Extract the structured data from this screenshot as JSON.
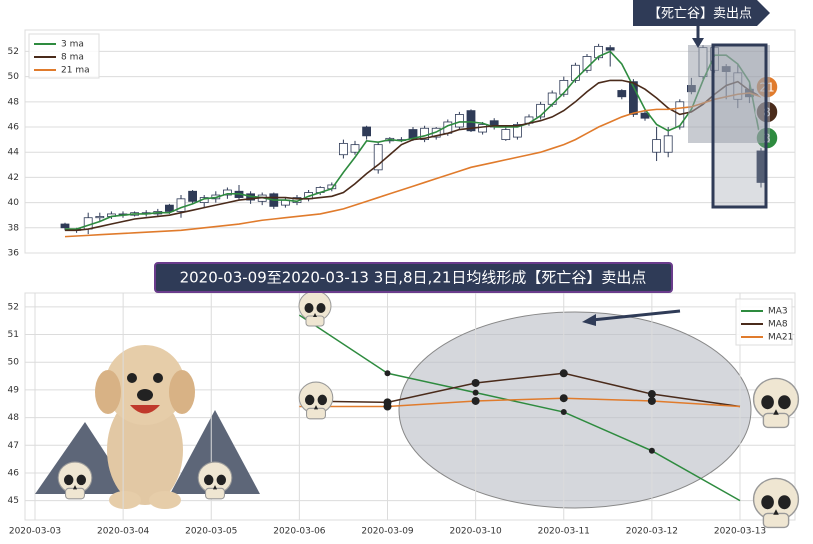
{
  "chart_data": [
    {
      "type": "candlestick",
      "categories": [
        null,
        null,
        null,
        null,
        null,
        null,
        null,
        null,
        null,
        null,
        null,
        null,
        null,
        null,
        null,
        null,
        null,
        null,
        null,
        null,
        null,
        null,
        null,
        null,
        null,
        null,
        null,
        null,
        null,
        null,
        null,
        null,
        null,
        null,
        null,
        null,
        null,
        null,
        null,
        null,
        null,
        null,
        null,
        null,
        null,
        null,
        null,
        null,
        null,
        null,
        null,
        null,
        null,
        null,
        null,
        null,
        null,
        null,
        null,
        null,
        null
      ],
      "open": [
        38.3,
        37.8,
        37.9,
        38.8,
        38.9,
        39.1,
        39.0,
        39.2,
        39.1,
        39.8,
        39.3,
        40.9,
        40.0,
        40.3,
        40.6,
        40.9,
        40.7,
        40.1,
        40.7,
        39.8,
        40.0,
        40.3,
        40.8,
        41.1,
        43.8,
        44.0,
        46.0,
        42.6,
        44.9,
        45.0,
        45.8,
        45.0,
        45.2,
        45.5,
        46.0,
        47.3,
        45.6,
        46.5,
        45.0,
        45.2,
        46.3,
        46.8,
        47.8,
        48.6,
        49.7,
        50.5,
        51.5,
        52.3,
        48.9,
        49.6,
        47.1,
        44.0,
        44.0,
        46.0,
        49.3,
        50.0,
        50.5,
        50.8,
        48.2,
        49.0,
        44.1
      ],
      "high": [
        38.4,
        38.0,
        39.2,
        39.2,
        39.3,
        39.3,
        39.3,
        39.4,
        39.5,
        39.9,
        40.6,
        41.0,
        40.6,
        40.9,
        41.2,
        41.4,
        40.9,
        40.8,
        40.8,
        40.4,
        40.6,
        41.0,
        41.3,
        41.6,
        45.0,
        44.9,
        46.1,
        44.8,
        45.2,
        45.2,
        46.0,
        46.1,
        46.0,
        46.6,
        47.2,
        47.4,
        46.4,
        46.7,
        46.0,
        46.4,
        47.0,
        48.0,
        48.9,
        50.0,
        51.1,
        51.8,
        52.6,
        52.5,
        49.0,
        49.8,
        47.3,
        46.0,
        46.0,
        48.2,
        49.9,
        52.5,
        52.5,
        51.0,
        51.0,
        49.4,
        44.6
      ],
      "low": [
        37.8,
        37.6,
        37.5,
        38.5,
        38.7,
        38.8,
        38.9,
        38.9,
        38.9,
        39.1,
        38.8,
        39.9,
        39.6,
        40.0,
        40.3,
        40.2,
        39.9,
        39.8,
        39.5,
        39.6,
        39.8,
        40.1,
        40.6,
        40.9,
        43.5,
        43.8,
        45.0,
        42.3,
        44.7,
        44.8,
        44.9,
        44.8,
        45.0,
        45.3,
        45.8,
        45.6,
        45.4,
        45.8,
        44.9,
        45.0,
        46.1,
        46.6,
        47.6,
        48.4,
        49.5,
        50.3,
        51.3,
        50.8,
        48.2,
        46.8,
        46.5,
        43.3,
        43.6,
        45.8,
        48.6,
        49.8,
        50.3,
        48.2,
        47.5,
        47.9,
        41.2
      ],
      "close": [
        38.0,
        37.9,
        38.8,
        38.9,
        39.1,
        39.0,
        39.2,
        39.1,
        39.3,
        39.3,
        40.3,
        40.1,
        40.4,
        40.6,
        41.0,
        40.4,
        40.2,
        40.6,
        39.7,
        40.2,
        40.4,
        40.8,
        41.2,
        41.4,
        44.7,
        44.6,
        45.3,
        44.6,
        45.1,
        45.0,
        45.1,
        45.9,
        45.9,
        46.4,
        47.0,
        45.7,
        46.2,
        46.0,
        45.8,
        46.2,
        46.8,
        47.8,
        48.7,
        49.7,
        50.9,
        51.6,
        52.4,
        52.1,
        48.4,
        47.0,
        46.7,
        45.0,
        45.3,
        48.0,
        48.8,
        52.3,
        52.3,
        50.4,
        50.3,
        48.4,
        41.6
      ],
      "up_color": "#ffffff",
      "down_color": "#2f3b57",
      "edge_color": "#2f3b57",
      "series": [
        {
          "name": "3 ma",
          "color": "#2e8b3f",
          "values": [
            37.9,
            37.9,
            38.2,
            38.5,
            38.9,
            39.0,
            39.1,
            39.1,
            39.2,
            39.2,
            39.6,
            39.9,
            40.3,
            40.4,
            40.7,
            40.7,
            40.5,
            40.4,
            40.2,
            40.2,
            40.1,
            40.5,
            40.8,
            41.1,
            42.4,
            43.6,
            44.9,
            44.8,
            45.0,
            44.9,
            45.1,
            45.3,
            45.6,
            46.1,
            46.4,
            46.4,
            46.3,
            46.0,
            46.0,
            46.0,
            46.3,
            46.9,
            47.8,
            48.7,
            49.8,
            50.7,
            51.6,
            52.0,
            51.0,
            49.2,
            47.4,
            46.2,
            45.7,
            46.1,
            47.4,
            49.7,
            51.7,
            51.7,
            51.0,
            49.6,
            44.8
          ]
        },
        {
          "name": "8 ma",
          "color": "#4a2b1b",
          "values": [
            37.8,
            37.8,
            37.9,
            38.1,
            38.3,
            38.5,
            38.7,
            38.8,
            38.9,
            39.0,
            39.2,
            39.4,
            39.6,
            39.8,
            40.0,
            40.2,
            40.3,
            40.4,
            40.4,
            40.4,
            40.3,
            40.3,
            40.4,
            40.5,
            40.8,
            41.5,
            42.3,
            43.0,
            43.8,
            44.6,
            45.0,
            45.1,
            45.3,
            45.5,
            45.8,
            45.9,
            46.0,
            46.1,
            46.1,
            46.1,
            46.3,
            46.5,
            46.8,
            47.3,
            48.0,
            48.8,
            49.5,
            49.7,
            49.7,
            49.5,
            49.0,
            48.3,
            47.5,
            47.0,
            47.2,
            47.8,
            48.6,
            49.3,
            49.6,
            48.9,
            48.4
          ]
        },
        {
          "name": "21 ma",
          "color": "#e07b2c",
          "values": [
            37.3,
            37.35,
            37.4,
            37.45,
            37.5,
            37.55,
            37.6,
            37.65,
            37.7,
            37.75,
            37.8,
            37.9,
            38.0,
            38.1,
            38.2,
            38.3,
            38.45,
            38.6,
            38.7,
            38.8,
            38.9,
            39.0,
            39.1,
            39.3,
            39.5,
            39.8,
            40.1,
            40.4,
            40.7,
            41.0,
            41.3,
            41.6,
            41.9,
            42.2,
            42.5,
            42.8,
            43.0,
            43.2,
            43.4,
            43.6,
            43.8,
            44.0,
            44.3,
            44.6,
            45.0,
            45.5,
            46.0,
            46.4,
            46.8,
            47.1,
            47.3,
            47.4,
            47.4,
            47.5,
            47.6,
            47.9,
            48.2,
            48.4,
            48.6,
            48.7,
            48.4
          ]
        }
      ],
      "ylim": [
        36,
        53.7
      ],
      "yticks": [
        36,
        38,
        40,
        42,
        44,
        46,
        48,
        50,
        52
      ],
      "grid": true,
      "legend": "upper left",
      "annotations": [
        "【死亡谷】卖出点",
        "21",
        "8",
        "3"
      ]
    },
    {
      "type": "line",
      "title": "2020-03-09至2020-03-13 3日,8日,21日均线形成【死亡谷】卖出点",
      "categories": [
        "2020-03-03",
        "2020-03-04",
        "2020-03-05",
        "2020-03-06",
        "2020-03-09",
        "2020-03-10",
        "2020-03-11",
        "2020-03-12",
        "2020-03-13"
      ],
      "series": [
        {
          "name": "MA3",
          "color": "#2e8b3f",
          "values": [
            null,
            null,
            null,
            51.7,
            49.6,
            48.9,
            48.2,
            46.8,
            45.0
          ]
        },
        {
          "name": "MA8",
          "color": "#4a2b1b",
          "values": [
            null,
            null,
            null,
            48.6,
            48.55,
            49.25,
            49.6,
            48.85,
            48.4
          ]
        },
        {
          "name": "MA21",
          "color": "#e07b2c",
          "values": [
            null,
            null,
            null,
            48.4,
            48.4,
            48.6,
            48.7,
            48.6,
            48.4
          ]
        }
      ],
      "ylim": [
        44.3,
        52.5
      ],
      "yticks": [
        45,
        46,
        47,
        48,
        49,
        50,
        51,
        52
      ],
      "grid": true,
      "legend": "upper right"
    }
  ]
}
